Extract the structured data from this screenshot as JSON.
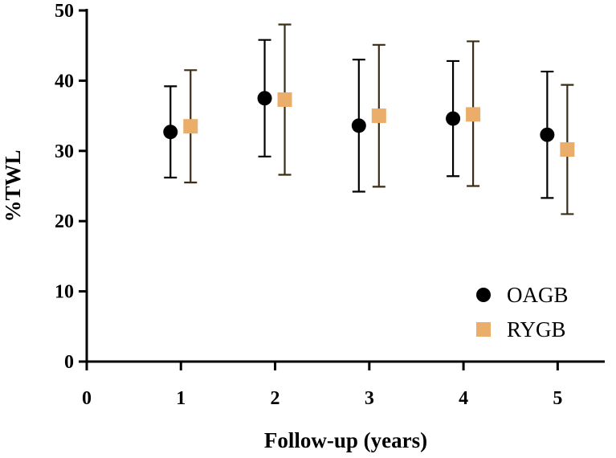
{
  "chart_data": {
    "type": "scatter",
    "title": "",
    "xlabel": "Follow-up (years)",
    "ylabel": "%TWL",
    "xlim": [
      0,
      5.5
    ],
    "ylim": [
      0,
      50
    ],
    "xticks": [
      "0",
      "1",
      "2",
      "3",
      "4",
      "5"
    ],
    "yticks": [
      "0",
      "10",
      "20",
      "30",
      "40",
      "50"
    ],
    "grid": false,
    "legend_position": "bottom-right",
    "series": [
      {
        "name": "OAGB",
        "marker": "circle",
        "color": "#000000",
        "whisker_color": "#000000",
        "x": [
          1,
          2,
          3,
          4,
          5
        ],
        "values": [
          32.7,
          37.5,
          33.6,
          34.6,
          32.3
        ],
        "lower": [
          26.2,
          29.2,
          24.2,
          26.4,
          23.3
        ],
        "upper": [
          39.2,
          45.8,
          43.0,
          42.8,
          41.3
        ]
      },
      {
        "name": "RYGB",
        "marker": "square",
        "color": "#eaad6a",
        "whisker_color": "#3a2c16",
        "x": [
          1,
          2,
          3,
          4,
          5
        ],
        "values": [
          33.5,
          37.3,
          35.0,
          35.2,
          30.2
        ],
        "lower": [
          25.5,
          26.6,
          24.9,
          25.0,
          21.0
        ],
        "upper": [
          41.5,
          48.0,
          45.1,
          45.6,
          39.4
        ]
      }
    ]
  }
}
